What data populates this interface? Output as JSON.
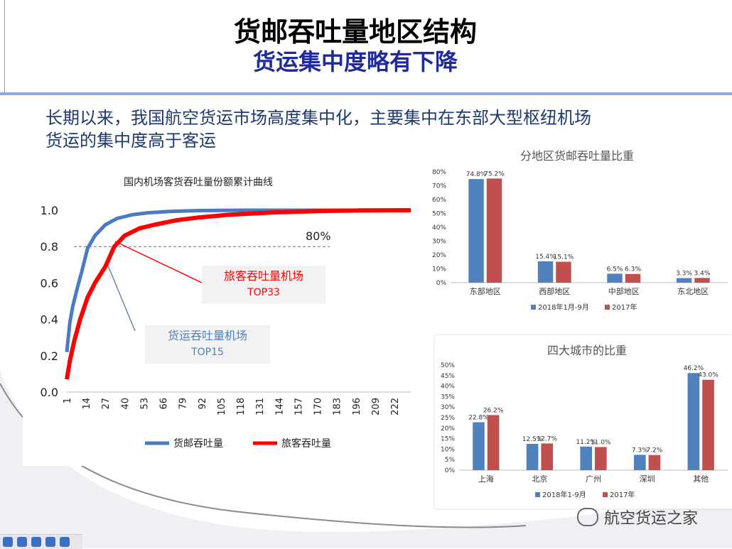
{
  "header": {
    "title": "货邮吞吐量地区结构",
    "subtitle": "货运集中度略有下降"
  },
  "intro": {
    "line1": "长期以来，我国航空货运市场高度集中化，主要集中在东部大型枢纽机场",
    "line2": "货运的集中度高于客运"
  },
  "colors": {
    "blue": "#4f81bd",
    "red": "#c0504d",
    "bright_red": "#ff0000",
    "curve_blue": "#4a7ac2"
  },
  "watermark": {
    "text": "航空货运之家"
  },
  "chart_data": [
    {
      "type": "line",
      "title": "国内机场客货吞吐量份额累计曲线",
      "x_ticks": [
        1,
        14,
        27,
        40,
        53,
        66,
        79,
        92,
        105,
        118,
        131,
        144,
        157,
        170,
        183,
        196,
        209,
        222
      ],
      "y_ticks": [
        "0.0",
        "0.2",
        "0.4",
        "0.6",
        "0.8",
        "1.0"
      ],
      "ylim": [
        0,
        1.0
      ],
      "xlim": [
        1,
        233
      ],
      "series": [
        {
          "name": "货邮吞吐量",
          "color": "#4a7ac2",
          "points": [
            [
              1,
              0.22
            ],
            [
              3,
              0.38
            ],
            [
              5,
              0.47
            ],
            [
              8,
              0.57
            ],
            [
              11,
              0.66
            ],
            [
              15,
              0.79
            ],
            [
              20,
              0.86
            ],
            [
              27,
              0.92
            ],
            [
              35,
              0.955
            ],
            [
              45,
              0.975
            ],
            [
              55,
              0.985
            ],
            [
              70,
              0.993
            ],
            [
              90,
              0.998
            ],
            [
              120,
              1.0
            ],
            [
              233,
              1.0
            ]
          ]
        },
        {
          "name": "旅客吞吐量",
          "color": "#ff0000",
          "points": [
            [
              1,
              0.07
            ],
            [
              3,
              0.17
            ],
            [
              6,
              0.28
            ],
            [
              10,
              0.4
            ],
            [
              15,
              0.52
            ],
            [
              20,
              0.6
            ],
            [
              27,
              0.69
            ],
            [
              33,
              0.8
            ],
            [
              40,
              0.86
            ],
            [
              50,
              0.9
            ],
            [
              60,
              0.92
            ],
            [
              75,
              0.945
            ],
            [
              90,
              0.96
            ],
            [
              110,
              0.975
            ],
            [
              140,
              0.988
            ],
            [
              170,
              0.995
            ],
            [
              200,
              0.999
            ],
            [
              233,
              1.0
            ]
          ]
        }
      ],
      "reference_line": {
        "y": 0.8,
        "label": "80%"
      },
      "annotations": [
        {
          "label": "旅客吞吐量机场",
          "sublabel": "TOP33"
        },
        {
          "label": "货运吞吐量机场",
          "sublabel": "TOP15"
        }
      ]
    },
    {
      "type": "bar",
      "title": "分地区货邮吞吐量比重",
      "categories": [
        "东部地区",
        "西部地区",
        "中部地区",
        "东北地区"
      ],
      "y_ticks": [
        "0%",
        "10%",
        "20%",
        "30%",
        "40%",
        "50%",
        "60%",
        "70%",
        "80%"
      ],
      "ylim": [
        0,
        80
      ],
      "series": [
        {
          "name": "2018年1月-9月",
          "color": "#4f81bd",
          "values": [
            74.8,
            15.4,
            6.5,
            3.3
          ],
          "labels": [
            "74.8%",
            "15.4%",
            "6.5%",
            "3.3%"
          ]
        },
        {
          "name": "2017年",
          "color": "#c0504d",
          "values": [
            75.2,
            15.1,
            6.3,
            3.4
          ],
          "labels": [
            "75.2%",
            "15.1%",
            "6.3%",
            "3.4%"
          ]
        }
      ]
    },
    {
      "type": "bar",
      "title": "四大城市的比重",
      "categories": [
        "上海",
        "北京",
        "广州",
        "深圳",
        "其他"
      ],
      "y_ticks": [
        "0%",
        "5%",
        "10%",
        "15%",
        "20%",
        "25%",
        "30%",
        "35%",
        "40%",
        "45%",
        "50%"
      ],
      "ylim": [
        0,
        50
      ],
      "series": [
        {
          "name": "2018年1-9月",
          "color": "#4f81bd",
          "values": [
            22.8,
            12.5,
            11.2,
            7.3,
            46.2
          ],
          "labels": [
            "22.8%",
            "12.5%",
            "11.2%",
            "7.3%",
            "46.2%"
          ]
        },
        {
          "name": "2017年",
          "color": "#c0504d",
          "values": [
            26.2,
            12.7,
            11.0,
            7.2,
            43.0
          ],
          "labels": [
            "26.2%",
            "12.7%",
            "11.0%",
            "7.2%",
            "43.0%"
          ]
        }
      ]
    }
  ]
}
